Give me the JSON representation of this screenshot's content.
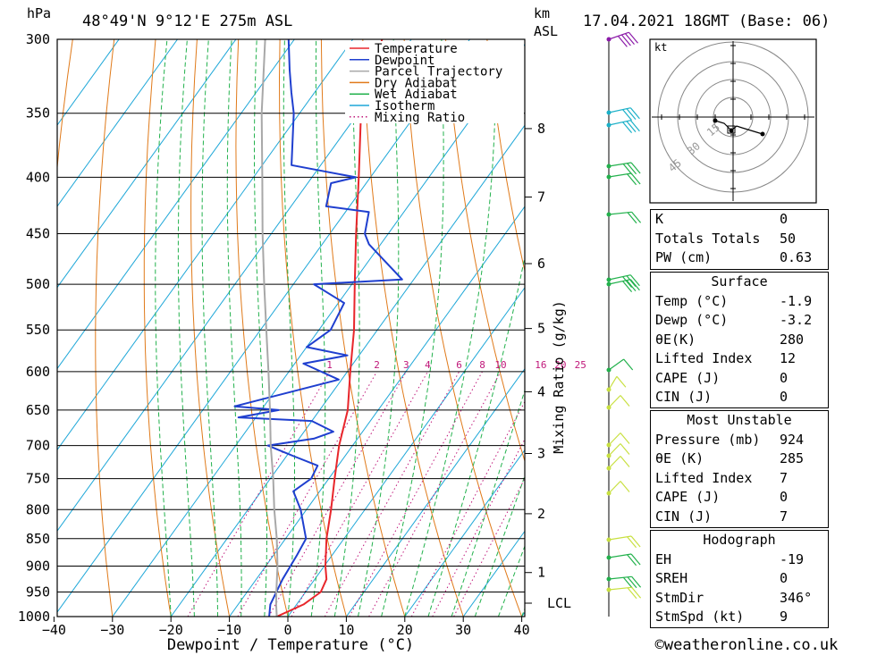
{
  "header": {
    "pressure_unit": "hPa",
    "location": "48°49'N  9°12'E  275m  ASL",
    "height_unit_line1": "km",
    "height_unit_line2": "ASL",
    "datetime": "17.04.2021  18GMT  (Base: 06)"
  },
  "chart_data": {
    "type": "line",
    "title": "48°49'N  9°12'E  275m  ASL",
    "xlabel": "Dewpoint / Temperature (°C)",
    "ylabel": "hPa",
    "right_axis_label": "Mixing Ratio (g/kg)",
    "x_ticks": [
      -40,
      -30,
      -20,
      -10,
      0,
      10,
      20,
      30,
      40
    ],
    "pressure_ticks": [
      300,
      350,
      400,
      450,
      500,
      550,
      600,
      650,
      700,
      750,
      800,
      850,
      900,
      950,
      1000
    ],
    "height_ticks_km": [
      1,
      2,
      3,
      4,
      5,
      6,
      7,
      8
    ],
    "lcl_label": "LCL",
    "mixing_ratio_labels": [
      "1",
      "2",
      "3",
      "4",
      "6",
      "8",
      "10",
      "16",
      "20",
      "25"
    ],
    "mixing_ratio_values": [
      1,
      2,
      3,
      4,
      6,
      8,
      10,
      16,
      20,
      25
    ],
    "legend": [
      "Temperature",
      "Dewpoint",
      "Parcel Trajectory",
      "Dry Adiabat",
      "Wet Adiabat",
      "Isotherm",
      "Mixing Ratio"
    ],
    "series": [
      {
        "name": "Temperature",
        "color": "#e8262b",
        "points": [
          [
            1000,
            -1.9
          ],
          [
            975,
            1.2
          ],
          [
            950,
            2.6
          ],
          [
            925,
            2.0
          ],
          [
            900,
            0.2
          ],
          [
            850,
            -3.0
          ],
          [
            800,
            -5.8
          ],
          [
            750,
            -9.0
          ],
          [
            700,
            -12.3
          ],
          [
            650,
            -15.2
          ],
          [
            600,
            -19.5
          ],
          [
            550,
            -24.0
          ],
          [
            500,
            -29.5
          ],
          [
            450,
            -35.5
          ],
          [
            400,
            -42.0
          ],
          [
            350,
            -49.5
          ],
          [
            300,
            -55.0
          ]
        ]
      },
      {
        "name": "Dewpoint",
        "color": "#1f3fcf",
        "points": [
          [
            1000,
            -3.2
          ],
          [
            975,
            -4.5
          ],
          [
            925,
            -5.5
          ],
          [
            880,
            -6.0
          ],
          [
            850,
            -6.5
          ],
          [
            800,
            -11.0
          ],
          [
            770,
            -14.5
          ],
          [
            750,
            -13.0
          ],
          [
            730,
            -13.5
          ],
          [
            715,
            -19.0
          ],
          [
            700,
            -24.5
          ],
          [
            690,
            -17.5
          ],
          [
            680,
            -15.0
          ],
          [
            665,
            -20.0
          ],
          [
            660,
            -33.0
          ],
          [
            650,
            -27.0
          ],
          [
            645,
            -35.0
          ],
          [
            610,
            -20.5
          ],
          [
            590,
            -28.5
          ],
          [
            580,
            -22.0
          ],
          [
            570,
            -30.0
          ],
          [
            550,
            -28.0
          ],
          [
            520,
            -29.0
          ],
          [
            500,
            -36.5
          ],
          [
            495,
            -22.0
          ],
          [
            460,
            -32.0
          ],
          [
            450,
            -34.0
          ],
          [
            430,
            -36.0
          ],
          [
            425,
            -44.0
          ],
          [
            405,
            -46.0
          ],
          [
            400,
            -42.5
          ],
          [
            390,
            -55.0
          ],
          [
            350,
            -61.0
          ],
          [
            335,
            -64.0
          ],
          [
            320,
            -67.0
          ],
          [
            300,
            -71.0
          ]
        ]
      },
      {
        "name": "Parcel Trajectory",
        "color": "#a8a8a8",
        "points": [
          [
            1000,
            -1.9
          ],
          [
            975,
            -3.5
          ],
          [
            950,
            -5.0
          ],
          [
            900,
            -8.0
          ],
          [
            850,
            -11.5
          ],
          [
            800,
            -15.5
          ],
          [
            750,
            -19.5
          ],
          [
            700,
            -24.0
          ],
          [
            650,
            -28.5
          ],
          [
            600,
            -33.5
          ],
          [
            550,
            -39.0
          ],
          [
            500,
            -45.0
          ],
          [
            450,
            -51.5
          ],
          [
            400,
            -58.5
          ],
          [
            350,
            -66.5
          ],
          [
            300,
            -75.0
          ]
        ]
      }
    ]
  },
  "wind_profile_colors": [
    "#8b1aa8",
    "#1ab0c8",
    "#22b14c",
    "#c8e040"
  ],
  "hodograph": {
    "unit_label": "kt",
    "ring_labels": [
      "15",
      "30",
      "45"
    ]
  },
  "indices": [
    {
      "label": "K",
      "value": "0"
    },
    {
      "label": "Totals Totals",
      "value": "50"
    },
    {
      "label": "PW (cm)",
      "value": "0.63"
    }
  ],
  "surface": {
    "title": "Surface",
    "rows": [
      {
        "label": "Temp (°C)",
        "value": "-1.9"
      },
      {
        "label": "Dewp (°C)",
        "value": "-3.2"
      },
      {
        "label": "θE(K)",
        "value": "280"
      },
      {
        "label": "Lifted Index",
        "value": "12"
      },
      {
        "label": "CAPE (J)",
        "value": "0"
      },
      {
        "label": "CIN (J)",
        "value": "0"
      }
    ]
  },
  "most_unstable": {
    "title": "Most Unstable",
    "rows": [
      {
        "label": "Pressure (mb)",
        "value": "924"
      },
      {
        "label": "θE (K)",
        "value": "285"
      },
      {
        "label": "Lifted Index",
        "value": "7"
      },
      {
        "label": "CAPE (J)",
        "value": "0"
      },
      {
        "label": "CIN (J)",
        "value": "7"
      }
    ]
  },
  "hodograph_table": {
    "title": "Hodograph",
    "rows": [
      {
        "label": "EH",
        "value": "-19"
      },
      {
        "label": "SREH",
        "value": "0"
      },
      {
        "label": "StmDir",
        "value": "346°"
      },
      {
        "label": "StmSpd (kt)",
        "value": "9"
      }
    ]
  },
  "footer": {
    "copyright": "©weatheronline.co.uk"
  }
}
